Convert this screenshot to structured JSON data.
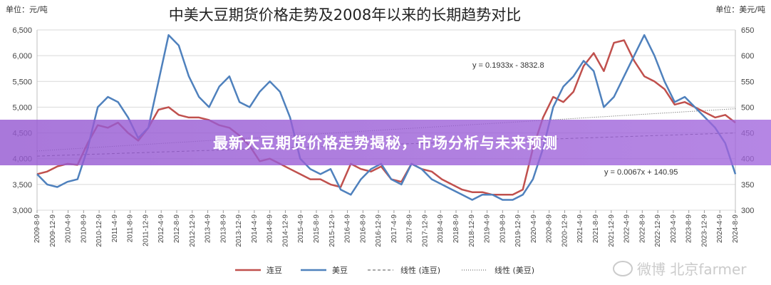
{
  "chart_data": {
    "type": "line",
    "title": "中美大豆期货价格走势及2008年以来的长期趋势对比",
    "left_unit": "单位：元/吨",
    "right_unit": "单位：美元/吨",
    "y_left": {
      "min": 3000,
      "max": 6500,
      "ticks": [
        "3,000",
        "3,500",
        "4,000",
        "4,500",
        "5,000",
        "5,500",
        "6,000",
        "6,500"
      ]
    },
    "y_right": {
      "min": 300,
      "max": 650,
      "ticks": [
        "300",
        "350",
        "400",
        "450",
        "500",
        "550",
        "600",
        "650"
      ]
    },
    "x_ticks": [
      "2009-8-9",
      "2009-12-9",
      "2010-4-9",
      "2010-8-9",
      "2010-12-9",
      "2011-4-9",
      "2011-8-9",
      "2011-12-9",
      "2012-4-9",
      "2012-8-9",
      "2012-12-9",
      "2013-4-9",
      "2013-8-9",
      "2013-12-9",
      "2014-4-9",
      "2014-8-9",
      "2014-12-9",
      "2015-4-9",
      "2015-8-9",
      "2015-12-9",
      "2016-4-9",
      "2016-8-9",
      "2016-12-9",
      "2017-4-9",
      "2017-8-9",
      "2017-12-9",
      "2018-4-9",
      "2018-8-9",
      "2018-12-9",
      "2019-4-9",
      "2019-8-9",
      "2019-12-9",
      "2020-4-9",
      "2020-8-9",
      "2020-12-9",
      "2021-4-9",
      "2021-8-9",
      "2021-12-9",
      "2022-4-9",
      "2022-8-9",
      "2022-12-9",
      "2023-4-9",
      "2023-8-9",
      "2023-12-9",
      "2024-4-9",
      "2024-8-9"
    ],
    "series": [
      {
        "name": "连豆",
        "axis": "left",
        "color": "#c0504d",
        "values": [
          3700,
          3750,
          3850,
          3900,
          3880,
          4300,
          4650,
          4600,
          4700,
          4500,
          4350,
          4600,
          4950,
          5000,
          4850,
          4800,
          4800,
          4750,
          4650,
          4600,
          4450,
          4250,
          3950,
          4000,
          3900,
          3800,
          3700,
          3600,
          3600,
          3500,
          3450,
          3900,
          3800,
          3750,
          3850,
          3600,
          3550,
          3900,
          3800,
          3750,
          3600,
          3500,
          3400,
          3350,
          3350,
          3300,
          3300,
          3300,
          3400,
          4200,
          4800,
          5200,
          5100,
          5300,
          5800,
          6050,
          5700,
          6250,
          6300,
          5900,
          5600,
          5500,
          5350,
          5050,
          5100,
          5000,
          4900,
          4800,
          4850,
          4700
        ]
      },
      {
        "name": "美豆",
        "axis": "right",
        "color": "#4f81bd",
        "values": [
          370,
          350,
          345,
          355,
          360,
          420,
          500,
          520,
          510,
          480,
          440,
          460,
          550,
          640,
          620,
          560,
          520,
          500,
          540,
          560,
          510,
          500,
          530,
          550,
          530,
          480,
          400,
          380,
          370,
          380,
          340,
          330,
          360,
          380,
          390,
          360,
          350,
          390,
          380,
          360,
          350,
          340,
          330,
          320,
          330,
          330,
          320,
          320,
          330,
          360,
          420,
          500,
          540,
          560,
          590,
          570,
          500,
          520,
          560,
          600,
          640,
          600,
          550,
          510,
          520,
          500,
          480,
          460,
          430,
          370
        ]
      },
      {
        "name": "线性 (连豆)",
        "style": "dashed",
        "color": "#555555"
      },
      {
        "name": "线性 (美豆)",
        "style": "dotted",
        "color": "#555555"
      }
    ],
    "trendlines": [
      {
        "axis": "left",
        "label": "y = 0.1933x - 3832.8",
        "start": 4050,
        "end": 4500
      },
      {
        "axis": "right",
        "label": "y = 0.0067x + 140.95",
        "start": 415,
        "end": 497
      }
    ],
    "grid": true,
    "legend_position": "bottom"
  },
  "overlay": {
    "headline": "最新大豆期货价格走势揭秘，市场分析与未来预测"
  },
  "watermark": {
    "text": "微博 北京farmer",
    "icon": "weibo-icon"
  }
}
